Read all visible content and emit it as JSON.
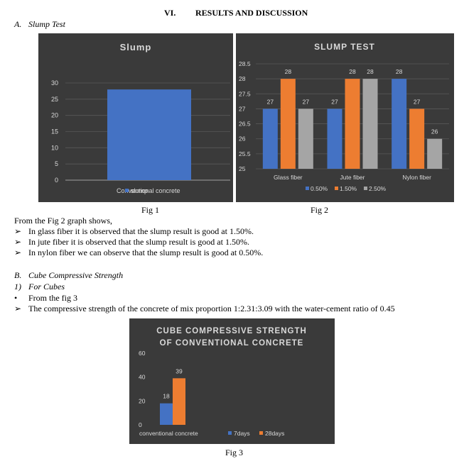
{
  "section_heading": {
    "number": "VI.",
    "title": "RESULTS AND DISCUSSION"
  },
  "subsection_a": {
    "label": "A.",
    "title": "Slump Test"
  },
  "fig1_caption": "Fig 1",
  "fig2_caption": "Fig 2",
  "fig3_caption": "Fig 3",
  "paragraph_fig2": "From the Fig 2 graph shows,",
  "bullets_fig2": [
    "In glass fiber it is observed that the slump result is good at 1.50%.",
    "In jute fiber it is observed that the slump result is good at 1.50%.",
    "In nylon fiber we can observe that the slump result is good at 0.50%."
  ],
  "subsection_b": {
    "label": "B.",
    "title": "Cube Compressive Strength"
  },
  "subsubsection_1": {
    "label": "1)",
    "title": "For Cubes"
  },
  "bullet_dot_text": "From the fig 3",
  "bullet_arrow_text": "The compressive strength of the concrete of mix proportion 1:2.31:3.09 with the water-cement ratio of 0.45",
  "colors": {
    "chart_bg": "#3a3a3a",
    "blue": "#4472c4",
    "orange": "#ed7d31",
    "gray": "#a5a5a5",
    "text": "#d9d9d9"
  },
  "chart_data": [
    {
      "type": "bar",
      "title": "Slump",
      "categories": [
        "Conventional concrete"
      ],
      "series": [
        {
          "name": "slump",
          "values": [
            28
          ]
        }
      ],
      "ylim": [
        0,
        30
      ],
      "yticks": [
        "0",
        "5",
        "10",
        "15",
        "20",
        "25",
        "30"
      ],
      "legend_position": "bottom",
      "grid": true
    },
    {
      "type": "bar",
      "title": "SLUMP TEST",
      "categories": [
        "Glass fiber",
        "Jute fiber",
        "Nylon fiber"
      ],
      "series": [
        {
          "name": "0.50%",
          "values": [
            27,
            27,
            28
          ],
          "labels": [
            "27",
            "27",
            "28"
          ]
        },
        {
          "name": "1.50%",
          "values": [
            28,
            28,
            27
          ],
          "labels": [
            "28",
            "28",
            "27"
          ]
        },
        {
          "name": "2.50%",
          "values": [
            27,
            28,
            26
          ],
          "labels": [
            "27",
            "28",
            "26"
          ]
        }
      ],
      "ylim": [
        25,
        28.5
      ],
      "yticks": [
        "25",
        "25.5",
        "26",
        "26.5",
        "27",
        "27.5",
        "28",
        "28.5"
      ],
      "legend_position": "bottom",
      "grid": true
    },
    {
      "type": "bar",
      "title_lines": [
        "CUBE COMPRESSIVE STRENGTH",
        "OF CONVENTIONAL CONCRETE"
      ],
      "categories": [
        "conventional concrete"
      ],
      "series": [
        {
          "name": "7days",
          "values": [
            18
          ],
          "labels": [
            "18"
          ]
        },
        {
          "name": "28days",
          "values": [
            39
          ],
          "labels": [
            "39"
          ]
        }
      ],
      "ylim": [
        0,
        60
      ],
      "yticks": [
        "0",
        "20",
        "40",
        "60"
      ],
      "legend_position": "bottom",
      "grid": false
    }
  ]
}
